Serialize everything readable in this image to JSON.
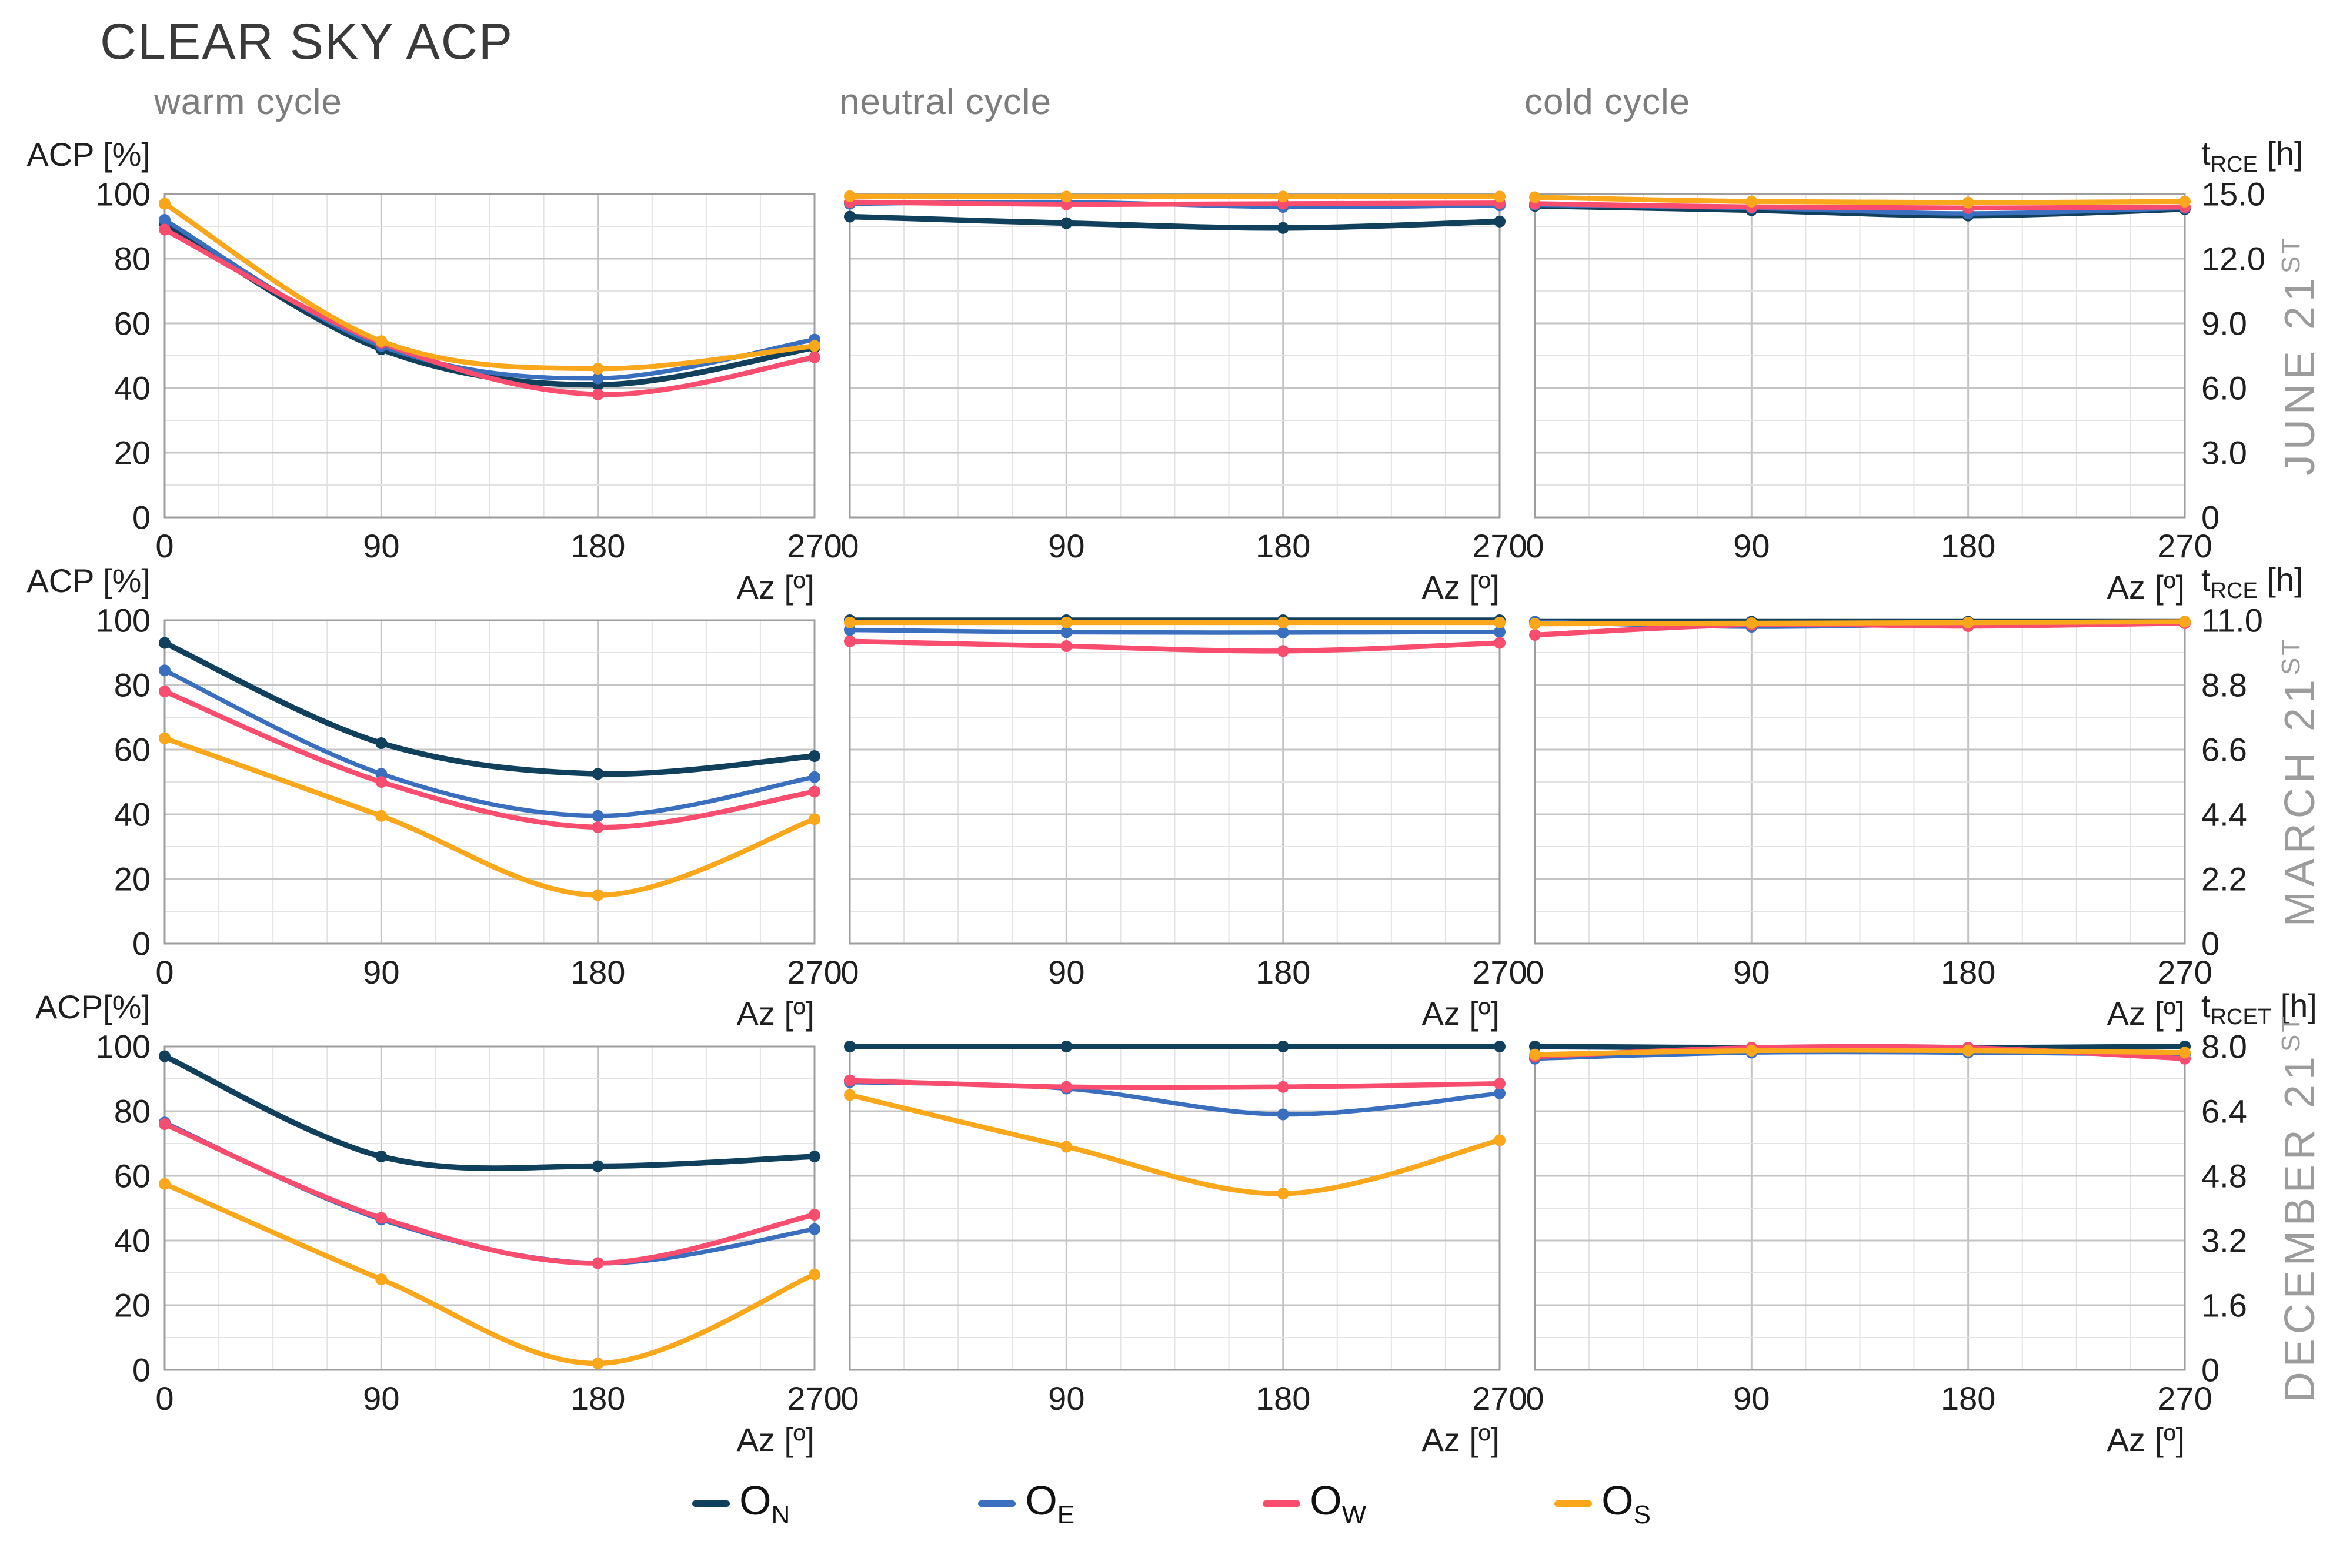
{
  "title": "CLEAR SKY ACP",
  "columns": [
    "warm cycle",
    "neutral cycle",
    "cold cycle"
  ],
  "x_axis": {
    "ticks": [
      "0",
      "90",
      "180",
      "270"
    ],
    "label": "Az [º]",
    "range": [
      0,
      270
    ]
  },
  "left_axis": {
    "titles_by_row": [
      "ACP [%]",
      "ACP [%]",
      "ACP[%]"
    ],
    "ticks": [
      "100",
      "80",
      "60",
      "40",
      "20",
      "0"
    ],
    "range": [
      0,
      100
    ]
  },
  "rows": [
    {
      "name": "JUNE 21",
      "sup": "ST",
      "right_axis_title": {
        "pre": "t",
        "sub": "RCE",
        "post": " [h]"
      },
      "right_ticks": [
        "15.0",
        "12.0",
        "9.0",
        "6.0",
        "3.0",
        "0"
      ]
    },
    {
      "name": "MARCH 21",
      "sup": "ST",
      "right_axis_title": {
        "pre": "t",
        "sub": "RCE",
        "post": " [h]"
      },
      "right_ticks": [
        "11.0",
        "8.8",
        "6.6",
        "4.4",
        "2.2",
        "0"
      ]
    },
    {
      "name": "DECEMBER 21",
      "sup": "ST",
      "right_axis_title": {
        "pre": "t",
        "sub": "RCET",
        "post": " [h]"
      },
      "right_ticks": [
        "8.0",
        "6.4",
        "4.8",
        "3.2",
        "1.6",
        "0"
      ]
    }
  ],
  "legend": [
    {
      "label": "O",
      "sub": "N",
      "color": "#11405d"
    },
    {
      "label": "O",
      "sub": "E",
      "color": "#3a6fc0"
    },
    {
      "label": "O",
      "sub": "W",
      "color": "#f94d6f"
    },
    {
      "label": "O",
      "sub": "S",
      "color": "#fba71b"
    }
  ],
  "series_style": {
    "colors": {
      "O_N": "#11405d",
      "O_E": "#3a6fc0",
      "O_W": "#f94d6f",
      "O_S": "#fba71b"
    },
    "widths": {
      "O_N": 9.5,
      "O_E": 7.5,
      "O_W": 8.5,
      "O_S": 8.5
    },
    "marker_radius": 10
  },
  "grid": {
    "x_minor_divisions": 12,
    "y_minor_divisions": 10,
    "x_major_every": 4,
    "y_major_every": 2
  },
  "chart_data": [
    {
      "id": "june-warm",
      "type": "line",
      "row": "JUNE 21ST",
      "column": "warm cycle",
      "xlabel": "Az [º]",
      "ylabel": "ACP [%]",
      "x": [
        0,
        90,
        180,
        270
      ],
      "ylim": [
        0,
        100
      ],
      "series": [
        {
          "name": "O_N",
          "values": [
            91,
            52,
            41,
            52.5
          ]
        },
        {
          "name": "O_E",
          "values": [
            92,
            53,
            43,
            55
          ]
        },
        {
          "name": "O_W",
          "values": [
            89,
            54,
            38,
            49.5
          ]
        },
        {
          "name": "O_S",
          "values": [
            97,
            54.5,
            46,
            53
          ]
        }
      ]
    },
    {
      "id": "june-neutral",
      "type": "line",
      "row": "JUNE 21ST",
      "column": "neutral cycle",
      "xlabel": "Az [º]",
      "x": [
        0,
        90,
        180,
        270
      ],
      "ylim": [
        0,
        100
      ],
      "series": [
        {
          "name": "O_N",
          "values": [
            93,
            91,
            89.5,
            91.5
          ]
        },
        {
          "name": "O_E",
          "values": [
            97,
            97.5,
            96,
            96.5
          ]
        },
        {
          "name": "O_W",
          "values": [
            97.5,
            96.8,
            97,
            97.2
          ]
        },
        {
          "name": "O_S",
          "values": [
            99.3,
            99.2,
            99.2,
            99.2
          ]
        }
      ]
    },
    {
      "id": "june-cold",
      "type": "line",
      "row": "JUNE 21ST",
      "column": "cold cycle",
      "xlabel": "Az [º]",
      "ylabel_right": "t_RCE [h]",
      "x": [
        0,
        90,
        180,
        270
      ],
      "ylim": [
        0,
        15
      ],
      "series": [
        {
          "name": "O_N",
          "values": [
            14.45,
            14.25,
            14.0,
            14.3
          ]
        },
        {
          "name": "O_E",
          "values": [
            14.5,
            14.35,
            14.1,
            14.35
          ]
        },
        {
          "name": "O_W",
          "values": [
            14.55,
            14.4,
            14.35,
            14.4
          ]
        },
        {
          "name": "O_S",
          "values": [
            14.85,
            14.65,
            14.6,
            14.65
          ]
        }
      ]
    },
    {
      "id": "march-warm",
      "type": "line",
      "row": "MARCH 21ST",
      "column": "warm cycle",
      "xlabel": "Az [º]",
      "ylabel": "ACP [%]",
      "x": [
        0,
        90,
        180,
        270
      ],
      "ylim": [
        0,
        100
      ],
      "series": [
        {
          "name": "O_N",
          "values": [
            93,
            62,
            52.5,
            58
          ]
        },
        {
          "name": "O_E",
          "values": [
            84.5,
            52.5,
            39.5,
            51.5
          ]
        },
        {
          "name": "O_W",
          "values": [
            78,
            50,
            36,
            47
          ]
        },
        {
          "name": "O_S",
          "values": [
            63.5,
            39.5,
            15,
            38.5
          ]
        }
      ]
    },
    {
      "id": "march-neutral",
      "type": "line",
      "row": "MARCH 21ST",
      "column": "neutral cycle",
      "xlabel": "Az [º]",
      "x": [
        0,
        90,
        180,
        270
      ],
      "ylim": [
        0,
        100
      ],
      "series": [
        {
          "name": "O_N",
          "values": [
            100,
            100,
            100,
            100
          ]
        },
        {
          "name": "O_E",
          "values": [
            97,
            96.3,
            96.2,
            96.4
          ]
        },
        {
          "name": "O_W",
          "values": [
            93.5,
            92,
            90.5,
            93
          ]
        },
        {
          "name": "O_S",
          "values": [
            99.3,
            99.3,
            99.3,
            99.3
          ]
        }
      ]
    },
    {
      "id": "march-cold",
      "type": "line",
      "row": "MARCH 21ST",
      "column": "cold cycle",
      "xlabel": "Az [º]",
      "ylabel_right": "t_RCE [h]",
      "x": [
        0,
        90,
        180,
        270
      ],
      "ylim": [
        0,
        11
      ],
      "series": [
        {
          "name": "O_N",
          "values": [
            10.95,
            10.95,
            10.95,
            10.95
          ]
        },
        {
          "name": "O_E",
          "values": [
            10.95,
            10.78,
            10.88,
            10.95
          ]
        },
        {
          "name": "O_W",
          "values": [
            10.5,
            10.85,
            10.8,
            10.9
          ]
        },
        {
          "name": "O_S",
          "values": [
            10.88,
            10.9,
            10.92,
            10.95
          ]
        }
      ]
    },
    {
      "id": "december-warm",
      "type": "line",
      "row": "DECEMBER 21ST",
      "column": "warm cycle",
      "xlabel": "Az [º]",
      "ylabel": "ACP[%]",
      "x": [
        0,
        90,
        180,
        270
      ],
      "ylim": [
        0,
        100
      ],
      "series": [
        {
          "name": "O_N",
          "values": [
            97,
            66,
            63,
            66
          ]
        },
        {
          "name": "O_E",
          "values": [
            76.5,
            46.5,
            33,
            43.5
          ]
        },
        {
          "name": "O_W",
          "values": [
            76,
            47,
            33,
            48
          ]
        },
        {
          "name": "O_S",
          "values": [
            57.5,
            28,
            2,
            29.5
          ]
        }
      ]
    },
    {
      "id": "december-neutral",
      "type": "line",
      "row": "DECEMBER 21ST",
      "column": "neutral cycle",
      "xlabel": "Az [º]",
      "x": [
        0,
        90,
        180,
        270
      ],
      "ylim": [
        0,
        100
      ],
      "series": [
        {
          "name": "O_N",
          "values": [
            100,
            100,
            100,
            100
          ]
        },
        {
          "name": "O_E",
          "values": [
            89,
            87,
            79,
            85.5
          ]
        },
        {
          "name": "O_W",
          "values": [
            89.5,
            87.5,
            87.5,
            88.5
          ]
        },
        {
          "name": "O_S",
          "values": [
            85,
            69,
            54.5,
            71
          ]
        }
      ]
    },
    {
      "id": "december-cold",
      "type": "line",
      "row": "DECEMBER 21ST",
      "column": "cold cycle",
      "xlabel": "Az [º]",
      "ylabel_right": "t_RCET [h]",
      "x": [
        0,
        90,
        180,
        270
      ],
      "ylim": [
        0,
        8
      ],
      "series": [
        {
          "name": "O_N",
          "values": [
            8.0,
            7.97,
            7.97,
            8.0
          ]
        },
        {
          "name": "O_E",
          "values": [
            7.7,
            7.85,
            7.85,
            7.8
          ]
        },
        {
          "name": "O_W",
          "values": [
            7.75,
            7.97,
            7.97,
            7.7
          ]
        },
        {
          "name": "O_S",
          "values": [
            7.8,
            7.9,
            7.9,
            7.85
          ]
        }
      ]
    }
  ]
}
